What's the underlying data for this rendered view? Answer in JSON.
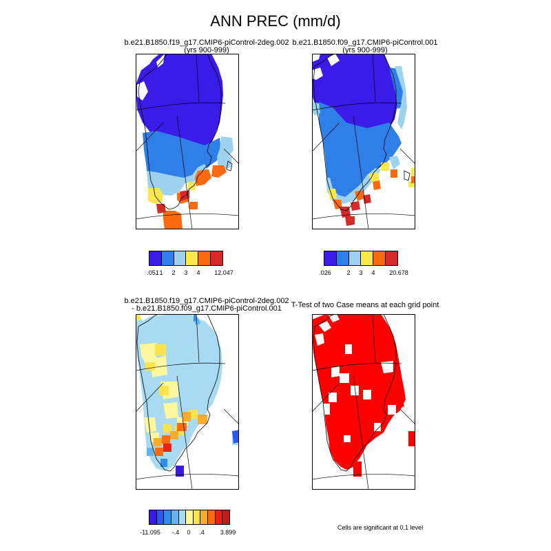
{
  "title": "ANN PREC (mm/d)",
  "panels": [
    {
      "id": "p1",
      "line1": "b.e21.B1850.f19_g17.CMIP6-piControl-2deg.002",
      "line2": "(yrs 900-999)"
    },
    {
      "id": "p2",
      "line1": "b.e21.B1850.f09_g17.CMIP6-piControl.001",
      "line2": "(yrs 900-999)"
    },
    {
      "id": "p3",
      "line1": "b.e21.B1850.f19_g17.CMIP6-piControl-2deg.002",
      "line2": "- b.e21.B1850.f09_g17.CMIP6-piControl.001"
    },
    {
      "id": "p4",
      "line1": "T-Test of two Case means at each grid point",
      "line2": ""
    }
  ],
  "colorbars": [
    {
      "colors": [
        "#3b1be8",
        "#2f7fe8",
        "#9ed3ef",
        "#fde84a",
        "#fb6a0e",
        "#d62a2a"
      ],
      "labels": [
        ".051",
        "1",
        "2",
        "3",
        "4",
        "12.047"
      ]
    },
    {
      "colors": [
        "#3b1be8",
        "#2f7fe8",
        "#9ed3ef",
        "#fde84a",
        "#fb6a0e",
        "#d62a2a"
      ],
      "labels": [
        ".026",
        "2",
        "3",
        "4",
        "20.678"
      ]
    },
    {
      "colors": [
        "#3a16e8",
        "#2c58ef",
        "#2d8ef0",
        "#5cb7f2",
        "#a8daf2",
        "#fff7a0",
        "#fde448",
        "#fdab28",
        "#fb6a0e",
        "#f02010",
        "#c81818"
      ],
      "labels": [
        "-11.095",
        "-.4",
        "0",
        ".4",
        "3.899"
      ]
    }
  ],
  "note": "Cells are significant at 0.1 level",
  "colors": {
    "purple": "#3b1be8",
    "blue": "#2f7fe8",
    "light_blue": "#9ed3ef",
    "yellow": "#fde84a",
    "orange": "#fb6a0e",
    "red": "#d62a2a",
    "significant": "#ff0000"
  }
}
